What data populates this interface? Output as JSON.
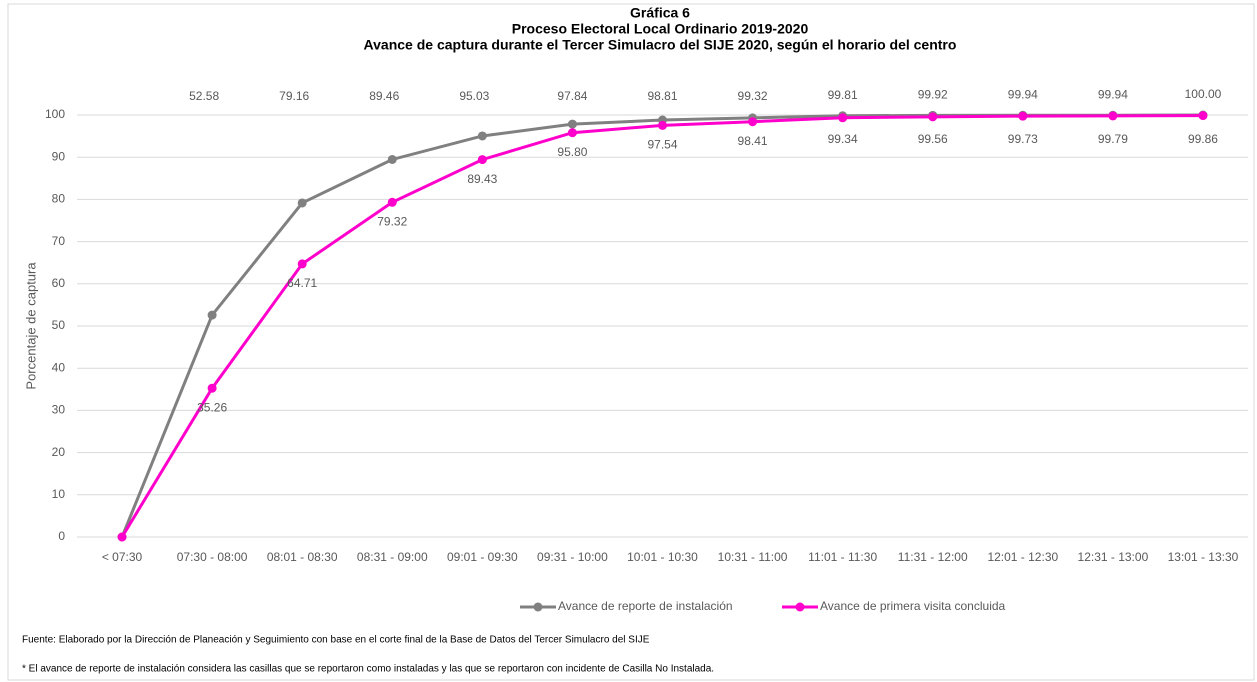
{
  "chart_data": {
    "type": "line",
    "title": "Gráfica 6",
    "subtitle": [
      "Proceso Electoral Local Ordinario 2019-2020",
      "Avance de captura durante el Tercer Simulacro del SIJE 2020, según el horario del centro"
    ],
    "y_label": "Porcentaje de captura",
    "categories": [
      "< 07:30",
      "07:30 - 08:00",
      "08:01 - 08:30",
      "08:31 - 09:00",
      "09:01 - 09:30",
      "09:31 - 10:00",
      "10:01 - 10:30",
      "10:31 - 11:00",
      "11:01 - 11:30",
      "11:31 - 12:00",
      "12:01 - 12:30",
      "12:31 - 13:00",
      "13:01 - 13:30"
    ],
    "series": [
      {
        "name": "Avance de reporte de instalación",
        "color": "#808080",
        "values": [
          0,
          52.58,
          79.16,
          89.46,
          95.03,
          97.84,
          98.81,
          99.32,
          99.81,
          99.92,
          99.94,
          99.94,
          100
        ],
        "value_labels": [
          null,
          "52.58",
          "79.16",
          "89.46",
          "95.03",
          "97.84",
          "98.81",
          "99.32",
          "99.81",
          "99.92",
          "99.94",
          "99.94",
          "100.00"
        ]
      },
      {
        "name": "Avance de primera visita concluida",
        "color": "#ff00cc",
        "values": [
          0,
          35.26,
          64.71,
          79.32,
          89.43,
          95.8,
          97.54,
          98.41,
          99.34,
          99.56,
          99.73,
          99.79,
          99.86
        ],
        "value_labels": [
          null,
          "35.26",
          "64.71",
          "79.32",
          "89.43",
          "95.80",
          "97.54",
          "98.41",
          "99.34",
          "99.56",
          "99.73",
          "99.79",
          "99.86"
        ]
      }
    ],
    "ylim": [
      0,
      100
    ],
    "yticks": [
      0,
      10,
      20,
      30,
      40,
      50,
      60,
      70,
      80,
      90,
      100
    ],
    "grid": true,
    "notes": [
      "Fuente: Elaborado por la Dirección de Planeación y Seguimiento con base en el corte final de la Base de Datos del Tercer Simulacro del SIJE",
      "* El avance de reporte de instalación considera las casillas que se reportaron como instaladas y las que se reportaron con incidente de Casilla No Instalada."
    ]
  }
}
